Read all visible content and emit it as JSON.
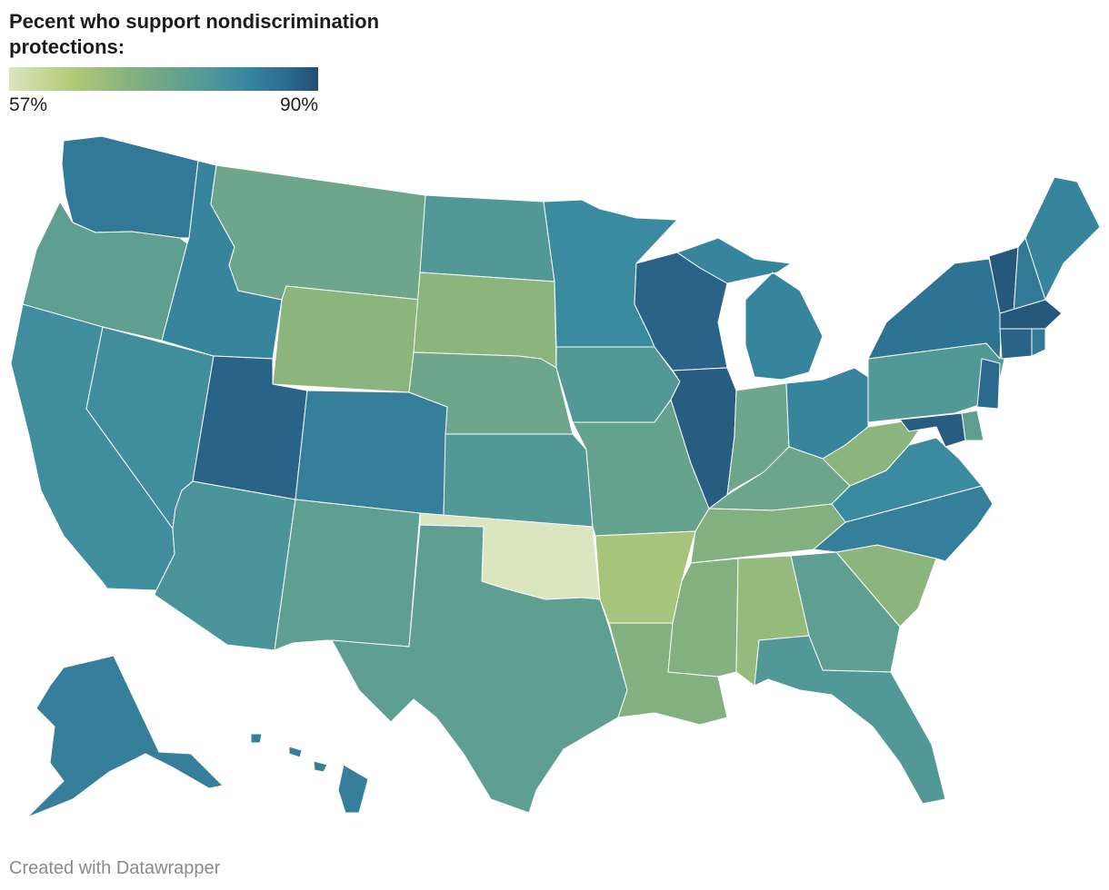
{
  "title": "Pecent who support nondiscrimination protections:",
  "legend": {
    "min_label": "57%",
    "max_label": "90%",
    "min_value": 57,
    "max_value": 90,
    "colors": [
      "#dbe5c0",
      "#b3cb78",
      "#83b07f",
      "#5a9d94",
      "#3a8aa0",
      "#2b6b90",
      "#234d70"
    ]
  },
  "footer": "Created with Datawrapper",
  "states": [
    {
      "id": "WA",
      "value": 82
    },
    {
      "id": "OR",
      "value": 73
    },
    {
      "id": "CA",
      "value": 78
    },
    {
      "id": "NV",
      "value": 78
    },
    {
      "id": "ID",
      "value": 80
    },
    {
      "id": "MT",
      "value": 71
    },
    {
      "id": "WY",
      "value": 67
    },
    {
      "id": "UT",
      "value": 86
    },
    {
      "id": "AZ",
      "value": 76
    },
    {
      "id": "CO",
      "value": 81
    },
    {
      "id": "NM",
      "value": 73
    },
    {
      "id": "ND",
      "value": 75
    },
    {
      "id": "SD",
      "value": 67
    },
    {
      "id": "NE",
      "value": 71
    },
    {
      "id": "KS",
      "value": 75
    },
    {
      "id": "OK",
      "value": 57
    },
    {
      "id": "TX",
      "value": 73
    },
    {
      "id": "MN",
      "value": 79
    },
    {
      "id": "IA",
      "value": 75
    },
    {
      "id": "MO",
      "value": 72
    },
    {
      "id": "AR",
      "value": 64
    },
    {
      "id": "LA",
      "value": 68
    },
    {
      "id": "WI",
      "value": 86
    },
    {
      "id": "IL",
      "value": 87
    },
    {
      "id": "MI",
      "value": 80
    },
    {
      "id": "IN",
      "value": 71
    },
    {
      "id": "OH",
      "value": 80
    },
    {
      "id": "KY",
      "value": 71
    },
    {
      "id": "TN",
      "value": 68
    },
    {
      "id": "MS",
      "value": 68
    },
    {
      "id": "AL",
      "value": 66
    },
    {
      "id": "GA",
      "value": 73
    },
    {
      "id": "FL",
      "value": 75
    },
    {
      "id": "SC",
      "value": 67
    },
    {
      "id": "NC",
      "value": 81
    },
    {
      "id": "VA",
      "value": 79
    },
    {
      "id": "WV",
      "value": 67
    },
    {
      "id": "PA",
      "value": 75
    },
    {
      "id": "NY",
      "value": 83
    },
    {
      "id": "VT",
      "value": 88
    },
    {
      "id": "NH",
      "value": 82
    },
    {
      "id": "ME",
      "value": 80
    },
    {
      "id": "MA",
      "value": 88
    },
    {
      "id": "RI",
      "value": 82
    },
    {
      "id": "CT",
      "value": 86
    },
    {
      "id": "NJ",
      "value": 85
    },
    {
      "id": "DE",
      "value": 73
    },
    {
      "id": "MD",
      "value": 87
    },
    {
      "id": "AK",
      "value": 81
    },
    {
      "id": "HI",
      "value": 81
    }
  ]
}
